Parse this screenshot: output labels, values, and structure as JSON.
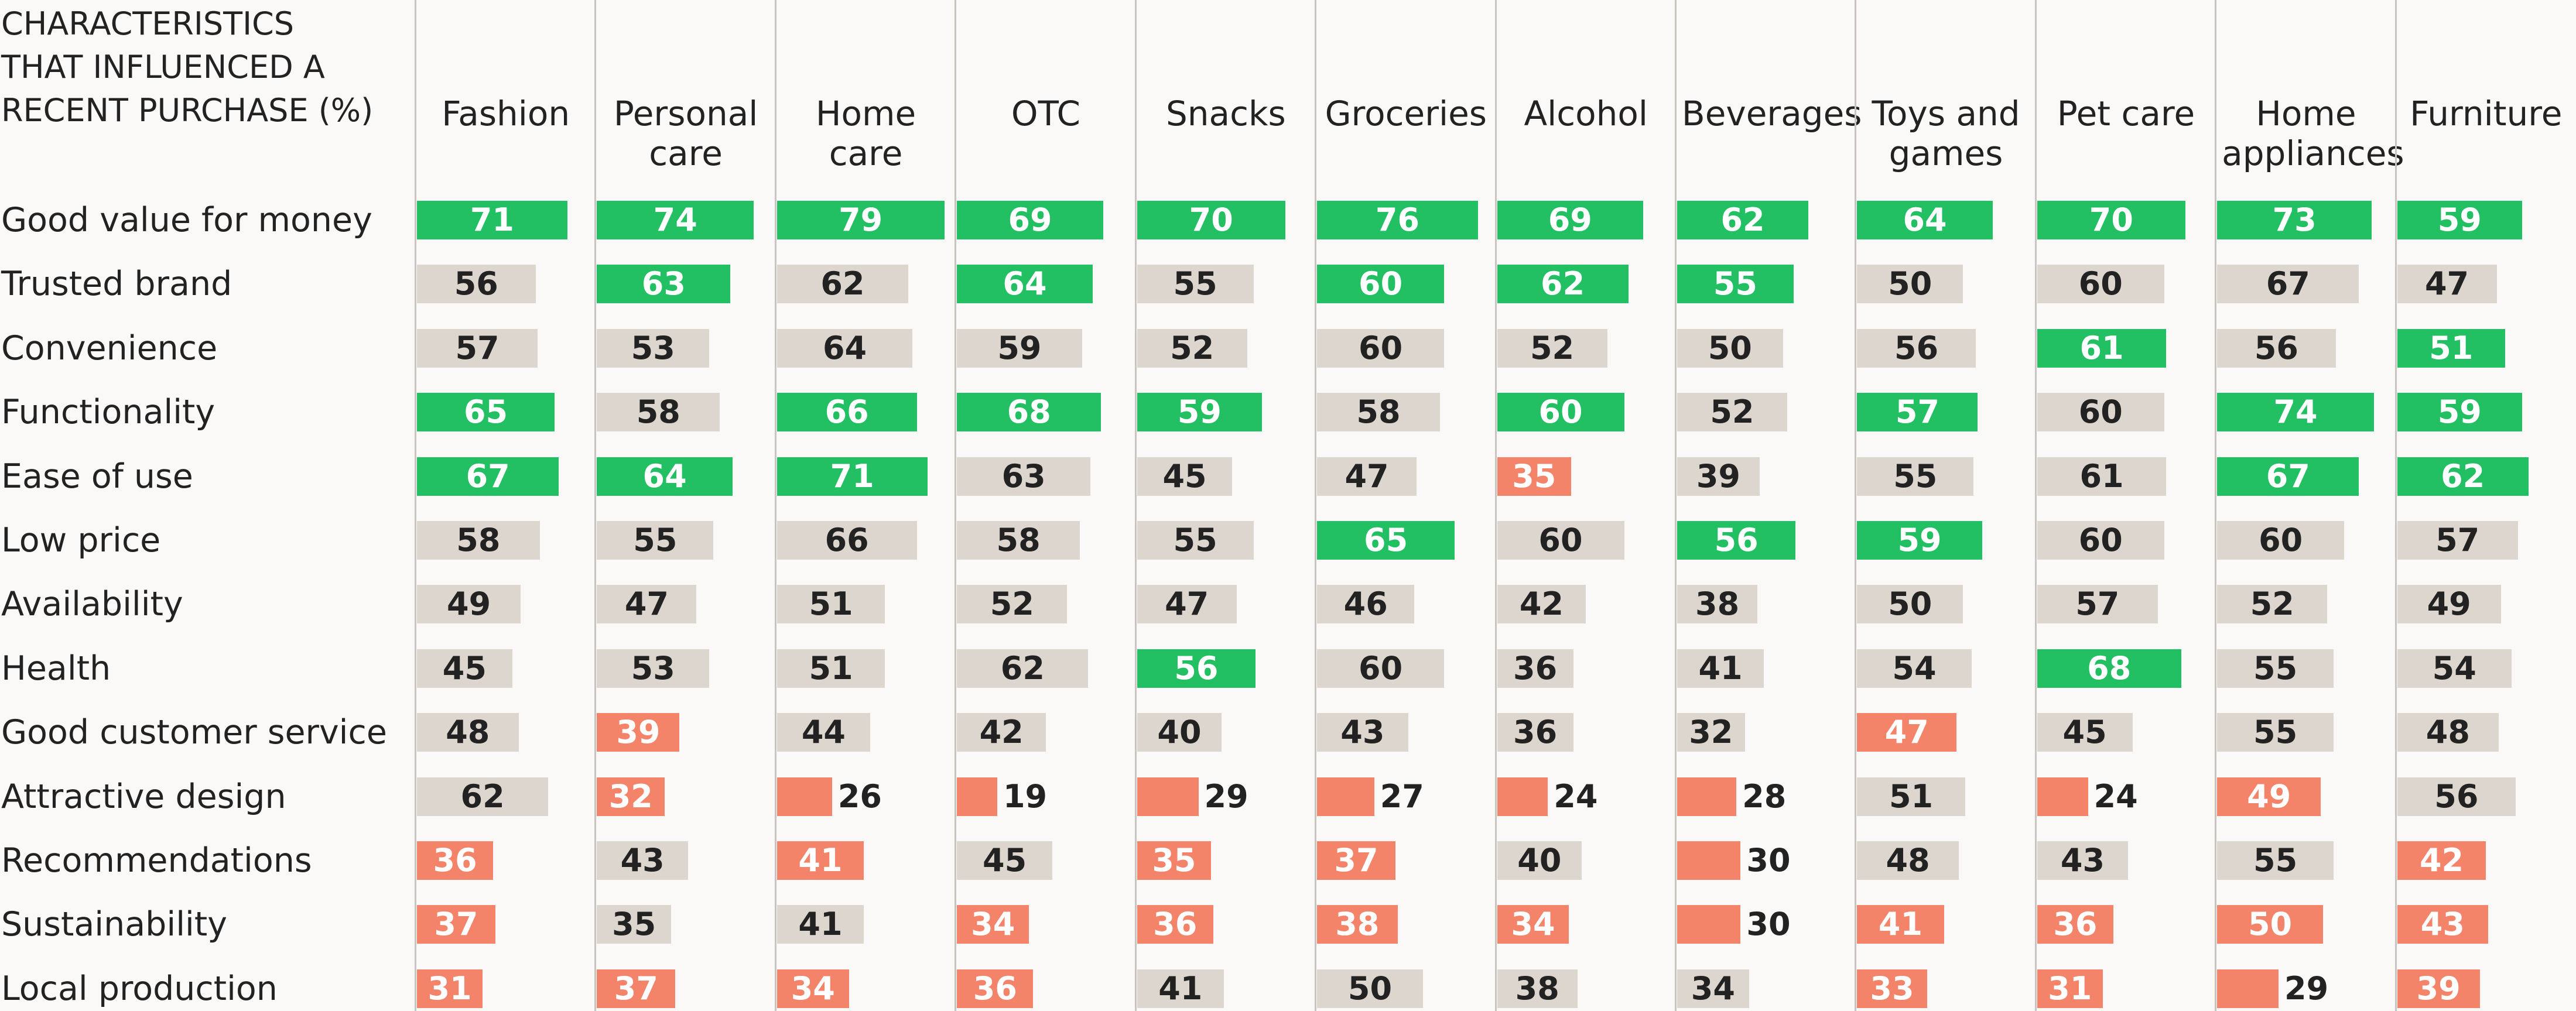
{
  "chart_data": {
    "type": "bar",
    "title": "CHARACTERISTICS THAT INFLUENCED A RECENT PURCHASE (%)",
    "categories": [
      "Good value for money",
      "Trusted brand",
      "Convenience",
      "Functionality",
      "Ease of use",
      "Low price",
      "Availability",
      "Health",
      "Good customer service",
      "Attractive design",
      "Recommendations",
      "Sustainability",
      "Local production"
    ],
    "xlim": [
      0,
      85
    ],
    "series": [
      {
        "name": "Fashion",
        "values": [
          71,
          56,
          57,
          65,
          67,
          58,
          49,
          45,
          48,
          62,
          36,
          37,
          31
        ],
        "colors": [
          "#22bf63",
          "#ddd6cf",
          "#ddd6cf",
          "#22bf63",
          "#22bf63",
          "#ddd6cf",
          "#ddd6cf",
          "#ddd6cf",
          "#ddd6cf",
          "#ddd6cf",
          "#f38469",
          "#f38469",
          "#f38469"
        ]
      },
      {
        "name": "Personal care",
        "values": [
          74,
          63,
          53,
          58,
          64,
          55,
          47,
          53,
          39,
          32,
          43,
          35,
          37
        ],
        "colors": [
          "#22bf63",
          "#22bf63",
          "#ddd6cf",
          "#ddd6cf",
          "#22bf63",
          "#ddd6cf",
          "#ddd6cf",
          "#ddd6cf",
          "#f38469",
          "#f38469",
          "#ddd6cf",
          "#ddd6cf",
          "#f38469"
        ]
      },
      {
        "name": "Home care",
        "values": [
          79,
          62,
          64,
          66,
          71,
          66,
          51,
          51,
          44,
          26,
          41,
          41,
          34
        ],
        "colors": [
          "#22bf63",
          "#ddd6cf",
          "#ddd6cf",
          "#22bf63",
          "#22bf63",
          "#ddd6cf",
          "#ddd6cf",
          "#ddd6cf",
          "#ddd6cf",
          "#f38469",
          "#f38469",
          "#ddd6cf",
          "#f38469"
        ]
      },
      {
        "name": "OTC",
        "values": [
          69,
          64,
          59,
          68,
          63,
          58,
          52,
          62,
          42,
          19,
          45,
          34,
          36
        ],
        "colors": [
          "#22bf63",
          "#22bf63",
          "#ddd6cf",
          "#22bf63",
          "#ddd6cf",
          "#ddd6cf",
          "#ddd6cf",
          "#ddd6cf",
          "#ddd6cf",
          "#f38469",
          "#ddd6cf",
          "#f38469",
          "#f38469"
        ]
      },
      {
        "name": "Snacks",
        "values": [
          70,
          55,
          52,
          59,
          45,
          55,
          47,
          56,
          40,
          29,
          35,
          36,
          41
        ],
        "colors": [
          "#22bf63",
          "#ddd6cf",
          "#ddd6cf",
          "#22bf63",
          "#ddd6cf",
          "#ddd6cf",
          "#ddd6cf",
          "#22bf63",
          "#ddd6cf",
          "#f38469",
          "#f38469",
          "#f38469",
          "#ddd6cf"
        ]
      },
      {
        "name": "Groceries",
        "values": [
          76,
          60,
          60,
          58,
          47,
          65,
          46,
          60,
          43,
          27,
          37,
          38,
          50
        ],
        "colors": [
          "#22bf63",
          "#22bf63",
          "#ddd6cf",
          "#ddd6cf",
          "#ddd6cf",
          "#22bf63",
          "#ddd6cf",
          "#ddd6cf",
          "#ddd6cf",
          "#f38469",
          "#f38469",
          "#f38469",
          "#ddd6cf"
        ]
      },
      {
        "name": "Alcohol",
        "values": [
          69,
          62,
          52,
          60,
          35,
          60,
          42,
          36,
          36,
          24,
          40,
          34,
          38
        ],
        "colors": [
          "#22bf63",
          "#22bf63",
          "#ddd6cf",
          "#22bf63",
          "#f38469",
          "#ddd6cf",
          "#ddd6cf",
          "#ddd6cf",
          "#ddd6cf",
          "#f38469",
          "#ddd6cf",
          "#f38469",
          "#ddd6cf"
        ]
      },
      {
        "name": "Beverages",
        "values": [
          62,
          55,
          50,
          52,
          39,
          56,
          38,
          41,
          32,
          28,
          30,
          30,
          34
        ],
        "colors": [
          "#22bf63",
          "#22bf63",
          "#ddd6cf",
          "#ddd6cf",
          "#ddd6cf",
          "#22bf63",
          "#ddd6cf",
          "#ddd6cf",
          "#ddd6cf",
          "#f38469",
          "#f38469",
          "#f38469",
          "#ddd6cf"
        ]
      },
      {
        "name": "Toys and games",
        "values": [
          64,
          50,
          56,
          57,
          55,
          59,
          50,
          54,
          47,
          51,
          48,
          41,
          33
        ],
        "colors": [
          "#22bf63",
          "#ddd6cf",
          "#ddd6cf",
          "#22bf63",
          "#ddd6cf",
          "#22bf63",
          "#ddd6cf",
          "#ddd6cf",
          "#f38469",
          "#ddd6cf",
          "#ddd6cf",
          "#f38469",
          "#f38469"
        ]
      },
      {
        "name": "Pet care",
        "values": [
          70,
          60,
          61,
          60,
          61,
          60,
          57,
          68,
          45,
          24,
          43,
          36,
          31
        ],
        "colors": [
          "#22bf63",
          "#ddd6cf",
          "#22bf63",
          "#ddd6cf",
          "#ddd6cf",
          "#ddd6cf",
          "#ddd6cf",
          "#22bf63",
          "#ddd6cf",
          "#f38469",
          "#ddd6cf",
          "#f38469",
          "#f38469"
        ]
      },
      {
        "name": "Home appliances",
        "values": [
          73,
          67,
          56,
          74,
          67,
          60,
          52,
          55,
          55,
          49,
          55,
          50,
          29
        ],
        "colors": [
          "#22bf63",
          "#ddd6cf",
          "#ddd6cf",
          "#22bf63",
          "#22bf63",
          "#ddd6cf",
          "#ddd6cf",
          "#ddd6cf",
          "#ddd6cf",
          "#f38469",
          "#ddd6cf",
          "#f38469",
          "#f38469"
        ]
      },
      {
        "name": "Furniture",
        "values": [
          59,
          47,
          51,
          59,
          62,
          57,
          49,
          54,
          48,
          56,
          42,
          43,
          39
        ],
        "colors": [
          "#22bf63",
          "#ddd6cf",
          "#22bf63",
          "#22bf63",
          "#22bf63",
          "#ddd6cf",
          "#ddd6cf",
          "#ddd6cf",
          "#ddd6cf",
          "#ddd6cf",
          "#f38469",
          "#f38469",
          "#f38469"
        ]
      }
    ]
  }
}
